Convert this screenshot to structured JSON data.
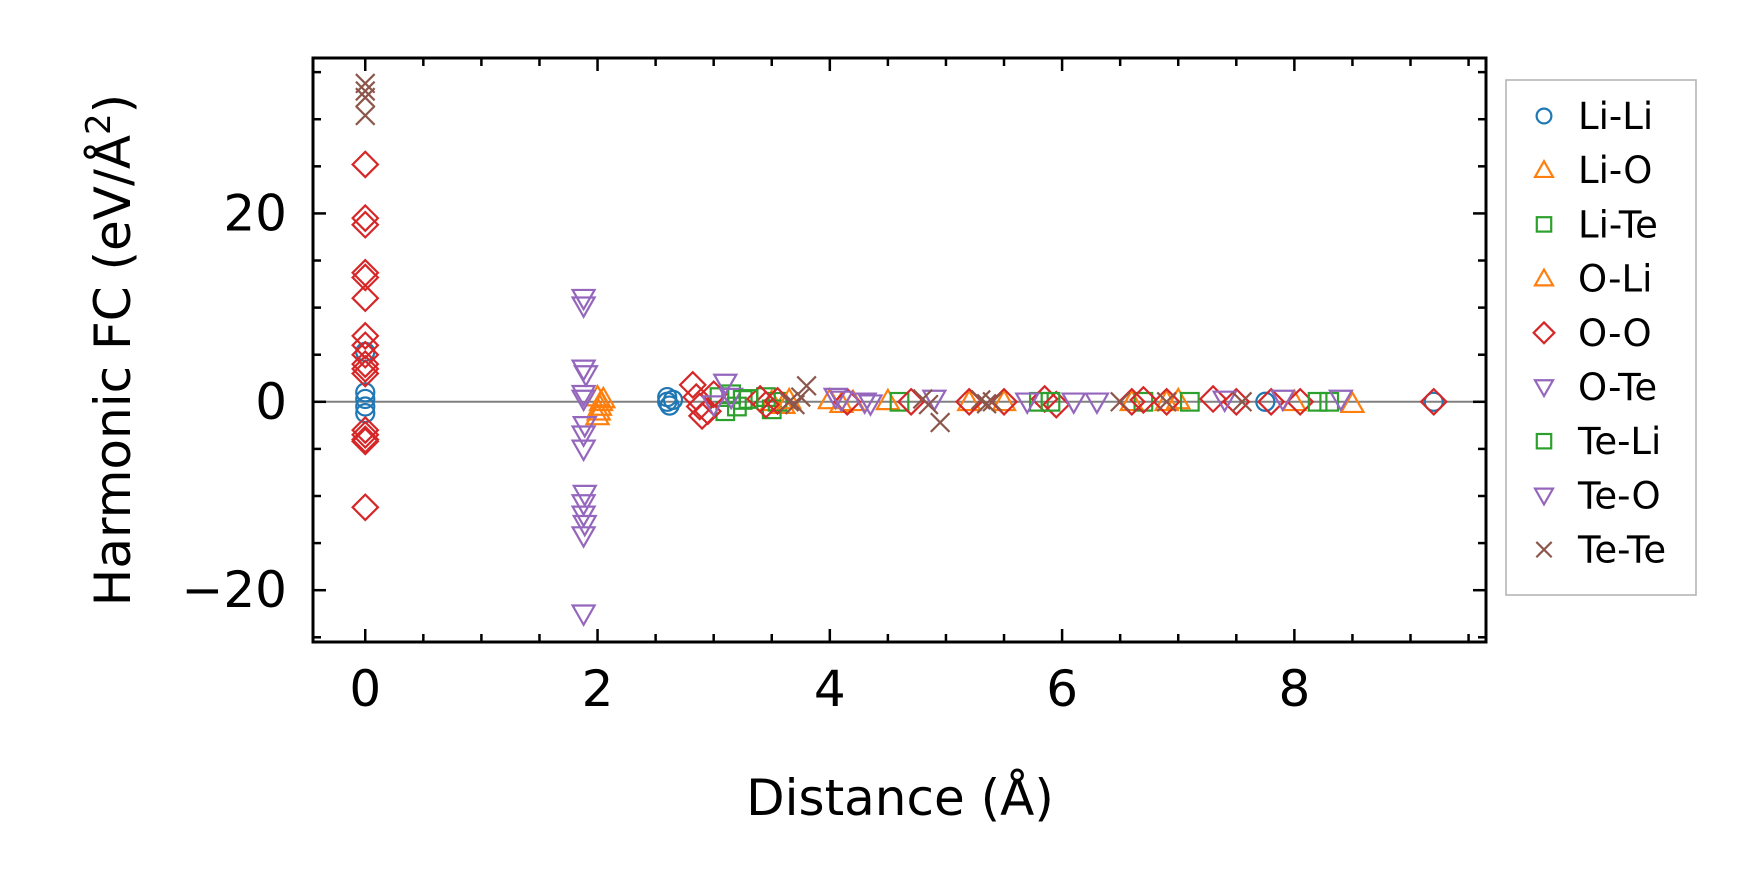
{
  "chart_data": {
    "type": "scatter",
    "title": "",
    "xlabel": "Distance (Å)",
    "ylabel_main": "Harmonic FC (eV/Å",
    "ylabel_sup": "2",
    "ylabel_close": ")",
    "xlim": [
      -0.45,
      9.65
    ],
    "ylim": [
      -25.5,
      36.5
    ],
    "xticks": [
      0,
      2,
      4,
      6,
      8
    ],
    "xtick_labels": [
      "0",
      "2",
      "4",
      "6",
      "8"
    ],
    "yticks": [
      -20,
      0,
      20
    ],
    "ytick_labels": [
      "−20",
      "0",
      "20"
    ],
    "x_minor_step": 0.5,
    "y_minor_step": 5,
    "zero_line": true,
    "legend_position": "outside right",
    "series": [
      {
        "name": "Li-Li",
        "marker": "circle",
        "color": "#1f77b4",
        "x": [
          0,
          0,
          0,
          0,
          0,
          2.6,
          2.6,
          2.62,
          2.65,
          7.75,
          9.2
        ],
        "y": [
          5.3,
          1.0,
          0.3,
          -0.5,
          -1.2,
          0.5,
          0,
          -0.4,
          0.2,
          0,
          0
        ]
      },
      {
        "name": "Li-O",
        "marker": "triangle-up",
        "color": "#ff7f0e",
        "x": [
          2.0,
          2.02,
          2.0,
          2.03,
          2.01,
          3.5,
          3.6,
          4.0,
          4.1,
          4.5,
          5.2,
          6.6,
          7.0,
          8.0,
          8.5
        ],
        "y": [
          0.5,
          -0.5,
          -1.5,
          0.0,
          -1.0,
          0.0,
          -0.3,
          0.2,
          -0.2,
          0.1,
          0.0,
          0.0,
          0.2,
          0.0,
          -0.2
        ]
      },
      {
        "name": "Li-Te",
        "marker": "square",
        "color": "#2ca02c",
        "x": [
          3.05,
          3.1,
          3.15,
          3.2,
          3.25,
          3.45,
          3.5,
          3.55,
          4.6,
          5.8,
          6.7,
          7.1,
          8.3
        ],
        "y": [
          0.5,
          -1.0,
          0.8,
          -0.5,
          0.2,
          0.5,
          -0.8,
          0.0,
          0.0,
          0.0,
          0.0,
          0.0,
          0.0
        ]
      },
      {
        "name": "O-Li",
        "marker": "triangle-up",
        "color": "#ff7f0e",
        "x": [
          2.05,
          3.65,
          4.2,
          5.5,
          6.9
        ],
        "y": [
          0.3,
          0.2,
          0.0,
          0.0,
          0.0
        ]
      },
      {
        "name": "O-O",
        "marker": "diamond",
        "color": "#d62728",
        "x": [
          0,
          0,
          0,
          0,
          0,
          0,
          0,
          0,
          0,
          0,
          0,
          0,
          0,
          0,
          0,
          0,
          0,
          2.82,
          2.85,
          2.88,
          2.9,
          2.95,
          3.0,
          3.4,
          3.45,
          3.55,
          4.15,
          4.7,
          5.2,
          5.5,
          5.85,
          5.95,
          6.6,
          6.7,
          6.9,
          7.3,
          7.5,
          7.8,
          8.05,
          9.2
        ],
        "y": [
          25.2,
          19.5,
          18.8,
          13.7,
          13.2,
          11.0,
          7.0,
          6.0,
          5.0,
          4.0,
          3.5,
          3.0,
          -3.0,
          -3.5,
          -4.0,
          -4.2,
          -11.2,
          1.8,
          0.5,
          -0.5,
          -1.5,
          -1.0,
          0.8,
          0.3,
          -0.3,
          0.1,
          0.0,
          0.0,
          0.0,
          0.0,
          0.3,
          -0.3,
          0.0,
          0.2,
          0.0,
          0.3,
          0.0,
          0.0,
          0.0,
          0.0
        ]
      },
      {
        "name": "O-Te",
        "marker": "triangle-down",
        "color": "#9467bd",
        "x": [
          1.88,
          1.88,
          1.88,
          1.9,
          1.88,
          1.89,
          1.88,
          1.88,
          1.89,
          1.88,
          1.88,
          1.89,
          1.88,
          1.88,
          1.88,
          3.1,
          3.15,
          4.05,
          4.3,
          4.9,
          5.7,
          6.3,
          7.4,
          7.9
        ],
        "y": [
          11.0,
          10.2,
          3.5,
          2.9,
          0.8,
          -2.5,
          -3.5,
          -5.0,
          -9.8,
          -10.8,
          -12.0,
          -13.0,
          -14.2,
          -22.5,
          0.3,
          2.0,
          0.5,
          0.5,
          0.0,
          0.3,
          0.0,
          0.0,
          0.2,
          0.3
        ]
      },
      {
        "name": "Te-Li",
        "marker": "square",
        "color": "#2ca02c",
        "x": [
          3.3,
          5.9,
          8.2
        ],
        "y": [
          0.3,
          0.0,
          0.0
        ]
      },
      {
        "name": "Te-O",
        "marker": "triangle-down",
        "color": "#9467bd",
        "x": [
          3.0,
          4.1,
          4.35,
          6.1,
          8.4
        ],
        "y": [
          -0.3,
          0.2,
          -0.2,
          0.0,
          0.3
        ]
      },
      {
        "name": "Te-Te",
        "marker": "x",
        "color": "#8c564b",
        "x": [
          0,
          0,
          0,
          0,
          3.65,
          3.7,
          3.75,
          3.8,
          4.8,
          4.85,
          4.95,
          5.3,
          5.35,
          5.4,
          6.5,
          6.9,
          7.55
        ],
        "y": [
          33.8,
          33.0,
          32.3,
          30.4,
          0.0,
          -0.3,
          0.5,
          1.7,
          0.3,
          -0.3,
          -2.2,
          0.2,
          -0.2,
          0.0,
          0.0,
          0.0,
          0.0
        ]
      }
    ]
  }
}
